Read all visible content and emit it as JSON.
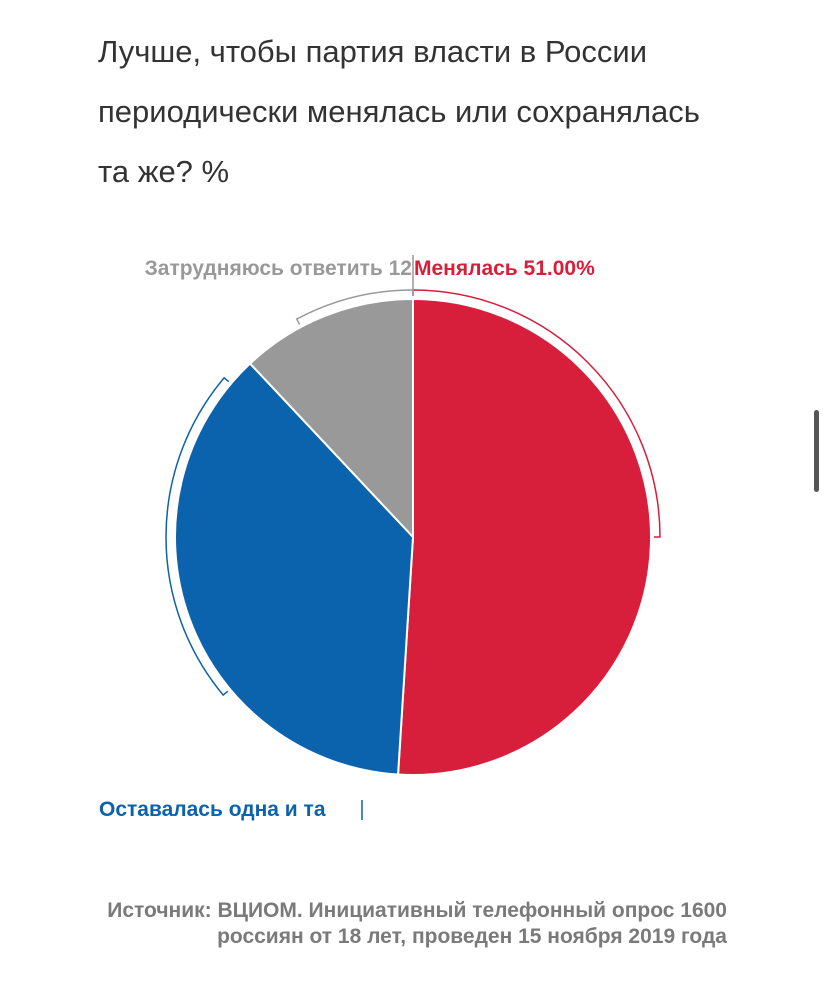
{
  "title": "Лучше, чтобы партия власти в России периодически менялась или сохранялась та же? %",
  "source": "Источник: ВЦИОМ. Инициативный телефонный опрос 1600 россиян от 18 лет, проведен 15 ноября 2019 года",
  "chart_data": {
    "type": "pie",
    "unit": "%",
    "slices": [
      {
        "label": "Менялась",
        "value": 51,
        "display": "Менялась 51.00%",
        "color": "#d71f3c"
      },
      {
        "label": "Оставалась одна и та",
        "value": 37,
        "display": "Оставалась одна и та",
        "color": "#0b62ad"
      },
      {
        "label": "Затрудняюсь ответить",
        "value": 12,
        "display": "Затрудняюсь ответить 12",
        "color": "#999999"
      }
    ]
  }
}
